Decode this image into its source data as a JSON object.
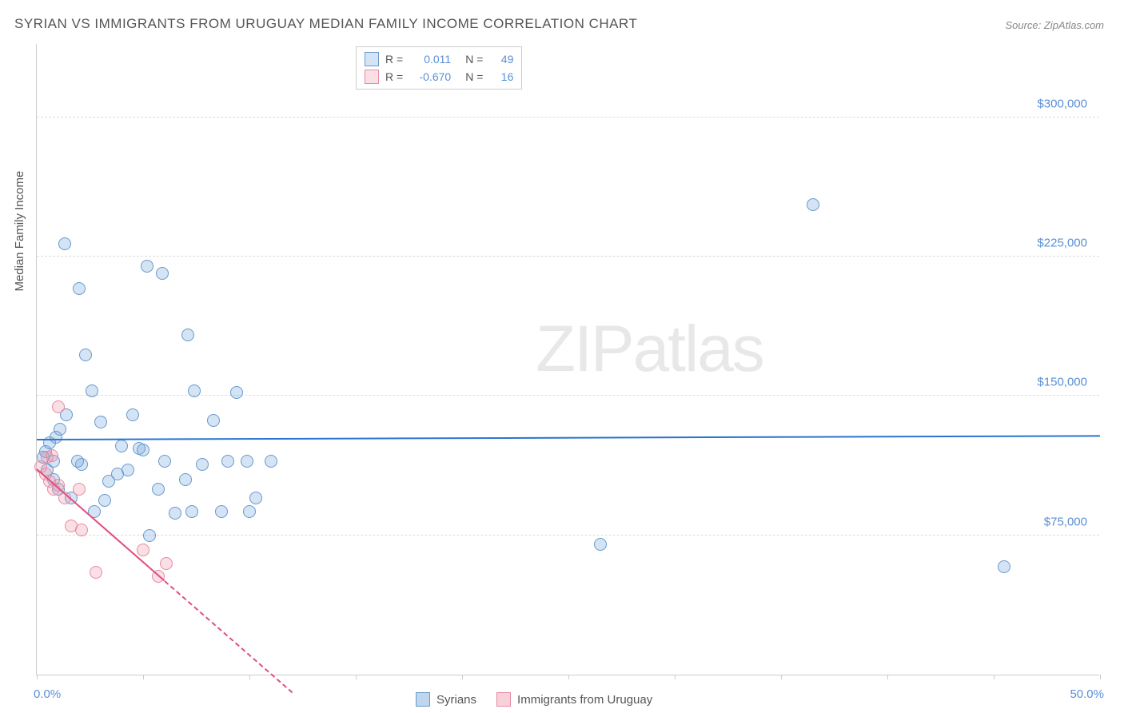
{
  "title": "SYRIAN VS IMMIGRANTS FROM URUGUAY MEDIAN FAMILY INCOME CORRELATION CHART",
  "source": "Source: ZipAtlas.com",
  "ylabel": "Median Family Income",
  "watermark_zip": "ZIP",
  "watermark_atlas": "atlas",
  "chart": {
    "type": "scatter",
    "xlim": [
      0,
      50
    ],
    "ylim": [
      0,
      340000
    ],
    "x_start_label": "0.0%",
    "x_end_label": "50.0%",
    "xtick_positions": [
      0,
      5,
      10,
      15,
      20,
      25,
      30,
      35,
      40,
      45,
      50
    ],
    "ygrid": [
      {
        "value": 75000,
        "label": "$75,000"
      },
      {
        "value": 150000,
        "label": "$150,000"
      },
      {
        "value": 225000,
        "label": "$225,000"
      },
      {
        "value": 300000,
        "label": "$300,000"
      }
    ],
    "background_color": "#ffffff",
    "grid_color": "#dddddd",
    "axis_color": "#cccccc",
    "marker_radius": 8,
    "series": [
      {
        "name": "Syrians",
        "fill": "rgba(115,165,220,0.30)",
        "stroke": "#6699cc",
        "trend_color": "#2a74d0",
        "trend": {
          "x1": 0,
          "y1": 126000,
          "x2": 50,
          "y2": 128000,
          "dashed": false
        },
        "r_label": "R =",
        "r_value": "0.011",
        "n_label": "N =",
        "n_value": "49",
        "points": [
          {
            "x": 0.4,
            "y": 120000
          },
          {
            "x": 0.5,
            "y": 110000
          },
          {
            "x": 0.6,
            "y": 125000
          },
          {
            "x": 0.8,
            "y": 115000
          },
          {
            "x": 0.8,
            "y": 105000
          },
          {
            "x": 0.9,
            "y": 128000
          },
          {
            "x": 1.0,
            "y": 100000
          },
          {
            "x": 1.3,
            "y": 232000
          },
          {
            "x": 1.4,
            "y": 140000
          },
          {
            "x": 1.6,
            "y": 95000
          },
          {
            "x": 2.0,
            "y": 208000
          },
          {
            "x": 2.3,
            "y": 172000
          },
          {
            "x": 2.6,
            "y": 153000
          },
          {
            "x": 2.7,
            "y": 88000
          },
          {
            "x": 3.0,
            "y": 136000
          },
          {
            "x": 3.4,
            "y": 104000
          },
          {
            "x": 3.8,
            "y": 108000
          },
          {
            "x": 4.0,
            "y": 123000
          },
          {
            "x": 4.3,
            "y": 110000
          },
          {
            "x": 4.8,
            "y": 122000
          },
          {
            "x": 5.0,
            "y": 121000
          },
          {
            "x": 5.2,
            "y": 220000
          },
          {
            "x": 5.3,
            "y": 75000
          },
          {
            "x": 5.7,
            "y": 100000
          },
          {
            "x": 5.9,
            "y": 216000
          },
          {
            "x": 6.0,
            "y": 115000
          },
          {
            "x": 6.5,
            "y": 87000
          },
          {
            "x": 7.0,
            "y": 105000
          },
          {
            "x": 7.1,
            "y": 183000
          },
          {
            "x": 7.3,
            "y": 88000
          },
          {
            "x": 7.4,
            "y": 153000
          },
          {
            "x": 7.8,
            "y": 113000
          },
          {
            "x": 8.3,
            "y": 137000
          },
          {
            "x": 8.7,
            "y": 88000
          },
          {
            "x": 9.0,
            "y": 115000
          },
          {
            "x": 9.4,
            "y": 152000
          },
          {
            "x": 9.9,
            "y": 115000
          },
          {
            "x": 10.0,
            "y": 88000
          },
          {
            "x": 10.3,
            "y": 95000
          },
          {
            "x": 11.0,
            "y": 115000
          },
          {
            "x": 26.5,
            "y": 70000
          },
          {
            "x": 36.5,
            "y": 253000
          },
          {
            "x": 45.5,
            "y": 58000
          },
          {
            "x": 0.3,
            "y": 117000
          },
          {
            "x": 1.1,
            "y": 132000
          },
          {
            "x": 2.1,
            "y": 113000
          },
          {
            "x": 3.2,
            "y": 94000
          },
          {
            "x": 4.5,
            "y": 140000
          },
          {
            "x": 1.9,
            "y": 115000
          }
        ]
      },
      {
        "name": "Immigrants from Uruguay",
        "fill": "rgba(240,150,170,0.30)",
        "stroke": "#e78aa4",
        "trend_color": "#e04f7d",
        "trend": {
          "x1": 0,
          "y1": 110000,
          "x2": 12,
          "y2": -10000,
          "dashed_after_x": 6
        },
        "r_label": "R =",
        "r_value": "-0.670",
        "n_label": "N =",
        "n_value": "16",
        "points": [
          {
            "x": 0.2,
            "y": 112000
          },
          {
            "x": 0.4,
            "y": 108000
          },
          {
            "x": 0.5,
            "y": 117000
          },
          {
            "x": 0.6,
            "y": 104000
          },
          {
            "x": 0.7,
            "y": 118000
          },
          {
            "x": 0.8,
            "y": 100000
          },
          {
            "x": 1.0,
            "y": 102000
          },
          {
            "x": 1.0,
            "y": 144000
          },
          {
            "x": 1.3,
            "y": 95000
          },
          {
            "x": 1.6,
            "y": 80000
          },
          {
            "x": 2.0,
            "y": 100000
          },
          {
            "x": 2.1,
            "y": 78000
          },
          {
            "x": 2.8,
            "y": 55000
          },
          {
            "x": 5.0,
            "y": 67000
          },
          {
            "x": 5.7,
            "y": 53000
          },
          {
            "x": 6.1,
            "y": 60000
          }
        ]
      }
    ]
  },
  "legend_bottom": [
    {
      "label": "Syrians",
      "fill": "rgba(115,165,220,0.45)",
      "stroke": "#6699cc"
    },
    {
      "label": "Immigrants from Uruguay",
      "fill": "rgba(240,150,170,0.45)",
      "stroke": "#e78aa4"
    }
  ]
}
